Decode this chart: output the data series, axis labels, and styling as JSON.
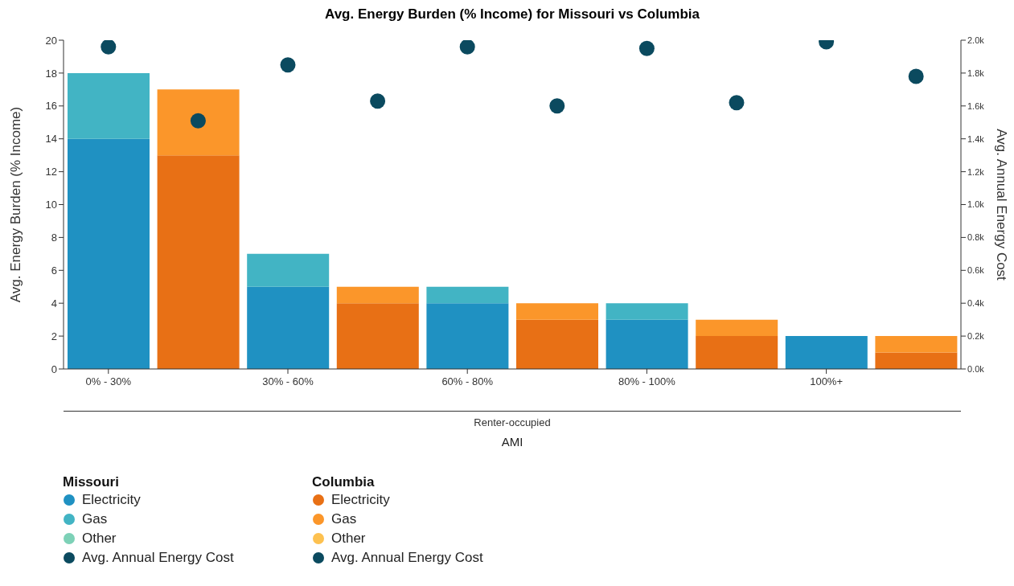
{
  "chart_data": {
    "type": "bar",
    "title": "Avg. Energy Burden (% Income) for Missouri vs Columbia",
    "categories": [
      "0% - 30%",
      null,
      "30% - 60%",
      null,
      "60% - 80%",
      null,
      "80% - 100%",
      null,
      "100%+",
      null
    ],
    "xlabel": "AMI",
    "ylabel": "Avg. Energy Burden (% Income)",
    "y2label": "Avg. Annual Energy Cost",
    "annotations": [
      "Renter-occupied",
      "Missouri",
      "Columbia"
    ],
    "stacked": true,
    "series": [
      {
        "name": "Electricity",
        "color": "#1f91c2",
        "values": [
          14,
          null,
          5,
          null,
          4,
          null,
          3,
          null,
          2,
          null
        ]
      },
      {
        "name": "Gas",
        "color": "#42b4c4",
        "values": [
          4,
          null,
          2,
          null,
          1,
          null,
          1,
          null,
          0,
          null
        ]
      },
      {
        "name": "Other",
        "color": "#7dd1b7",
        "values": [
          0,
          null,
          0,
          null,
          0,
          null,
          0,
          null,
          0,
          null
        ]
      },
      {
        "name": "Avg. Annual Energy Cost",
        "type": "scatter",
        "axis": "y2",
        "color": "#0b4a5f",
        "values": [
          1960,
          null,
          1850,
          null,
          1960,
          null,
          1950,
          null,
          1990,
          null
        ]
      },
      {
        "name": "Electricity",
        "color": "#e87015",
        "values": [
          null,
          13,
          null,
          4,
          null,
          3,
          null,
          2,
          null,
          1
        ]
      },
      {
        "name": "Gas",
        "color": "#fb962a",
        "values": [
          null,
          4,
          null,
          1,
          null,
          1,
          null,
          1,
          null,
          1
        ]
      },
      {
        "name": "Other",
        "color": "#fdc150",
        "values": [
          null,
          0,
          null,
          0,
          null,
          0,
          null,
          0,
          null,
          0
        ]
      },
      {
        "name": "Avg. Annual Energy Cost",
        "type": "scatter",
        "axis": "y2",
        "color": "#0b4a5f",
        "values": [
          null,
          1510,
          null,
          1630,
          null,
          1600,
          null,
          1620,
          null,
          1780
        ]
      }
    ],
    "ylim": [
      0,
      20
    ],
    "yticks": [
      0,
      2,
      4,
      6,
      8,
      10,
      12,
      14,
      16,
      18,
      20
    ],
    "y2lim": [
      0,
      2000
    ],
    "y2ticks": [
      {
        "value": 0,
        "label": "0.0k"
      },
      {
        "value": 200,
        "label": "0.2k"
      },
      {
        "value": 400,
        "label": "0.4k"
      },
      {
        "value": 600,
        "label": "0.6k"
      },
      {
        "value": 800,
        "label": "0.8k"
      },
      {
        "value": 1000,
        "label": "1.0k"
      },
      {
        "value": 1200,
        "label": "1.2k"
      },
      {
        "value": 1400,
        "label": "1.4k"
      },
      {
        "value": 1600,
        "label": "1.6k"
      },
      {
        "value": 1800,
        "label": "1.8k"
      },
      {
        "value": 2000,
        "label": "2.0k"
      }
    ],
    "grid": false,
    "legend": "bottom left",
    "marker": "circle"
  }
}
